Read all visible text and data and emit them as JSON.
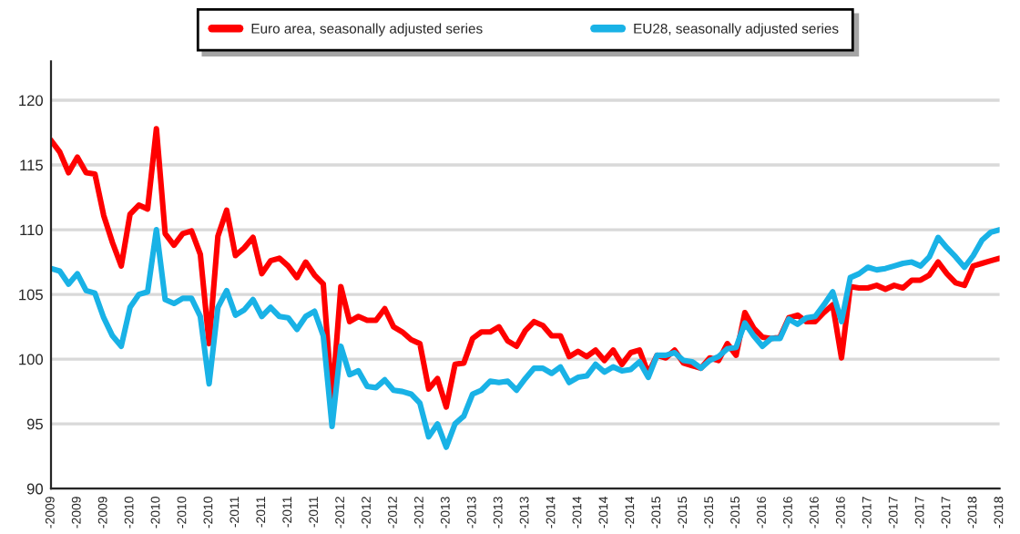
{
  "chart_data": {
    "type": "line",
    "categories": [
      "-2009",
      null,
      null,
      "-2009",
      null,
      null,
      "-2009",
      null,
      null,
      "-2010",
      null,
      null,
      "-2010",
      null,
      null,
      "-2010",
      null,
      null,
      "-2010",
      null,
      null,
      "-2011",
      null,
      null,
      "-2011",
      null,
      null,
      "-2011",
      null,
      null,
      "-2011",
      null,
      null,
      "-2012",
      null,
      null,
      "-2012",
      null,
      null,
      "-2012",
      null,
      null,
      "-2012",
      null,
      null,
      "-2013",
      null,
      null,
      "-2013",
      null,
      null,
      "-2013",
      null,
      null,
      "-2013",
      null,
      null,
      "-2014",
      null,
      null,
      "-2014",
      null,
      null,
      "-2014",
      null,
      null,
      "-2014",
      null,
      null,
      "-2015",
      null,
      null,
      "-2015",
      null,
      null,
      "-2015",
      null,
      null,
      "-2015",
      null,
      null,
      "-2016",
      null,
      null,
      "-2016",
      null,
      null,
      "-2016",
      null,
      null,
      "-2016",
      null,
      null,
      "-2017",
      null,
      null,
      "-2017",
      null,
      null,
      "-2017",
      null,
      null,
      "-2017",
      null,
      null,
      "-2018",
      null,
      null,
      "-2018"
    ],
    "series": [
      {
        "name": "Euro area, seasonally adjusted series",
        "color": "#ff0000",
        "values": [
          116.9,
          116.0,
          114.4,
          115.6,
          114.4,
          114.3,
          111.1,
          109.0,
          107.2,
          111.2,
          111.9,
          111.6,
          117.8,
          109.7,
          108.8,
          109.7,
          109.9,
          108.1,
          101.2,
          109.5,
          111.5,
          108.0,
          108.6,
          109.4,
          106.6,
          107.6,
          107.8,
          107.2,
          106.3,
          107.5,
          106.5,
          105.8,
          96.8,
          105.6,
          102.9,
          103.3,
          103.0,
          103.0,
          103.9,
          102.5,
          102.1,
          101.5,
          101.2,
          97.7,
          98.5,
          96.3,
          99.6,
          99.7,
          101.6,
          102.1,
          102.1,
          102.5,
          101.4,
          101.0,
          102.2,
          102.9,
          102.6,
          101.8,
          101.8,
          100.2,
          100.6,
          100.2,
          100.7,
          99.9,
          100.7,
          99.6,
          100.5,
          100.7,
          98.9,
          100.3,
          100.1,
          100.7,
          99.7,
          99.5,
          99.3,
          100.1,
          99.9,
          101.2,
          100.3,
          103.6,
          102.4,
          101.7,
          101.6,
          101.7,
          103.2,
          103.4,
          102.9,
          102.9,
          103.6,
          104.2,
          100.1,
          105.6,
          105.5,
          105.5,
          105.7,
          105.4,
          105.7,
          105.5,
          106.1,
          106.1,
          106.5,
          107.5,
          106.6,
          105.9,
          105.7,
          107.2,
          107.4,
          107.6,
          107.8
        ]
      },
      {
        "name": "EU28, seasonally adjusted series",
        "color": "#19b2e6",
        "values": [
          107.0,
          106.8,
          105.8,
          106.6,
          105.3,
          105.1,
          103.2,
          101.8,
          101.0,
          104.0,
          105.0,
          105.2,
          110.0,
          104.6,
          104.3,
          104.7,
          104.7,
          103.3,
          98.1,
          104.0,
          105.3,
          103.4,
          103.8,
          104.6,
          103.3,
          104.0,
          103.3,
          103.2,
          102.3,
          103.3,
          103.7,
          101.8,
          94.8,
          101.0,
          98.8,
          99.1,
          97.9,
          97.8,
          98.4,
          97.6,
          97.5,
          97.3,
          96.6,
          94.0,
          95.0,
          93.2,
          95.0,
          95.6,
          97.3,
          97.6,
          98.3,
          98.2,
          98.3,
          97.6,
          98.5,
          99.3,
          99.3,
          98.9,
          99.4,
          98.2,
          98.6,
          98.7,
          99.6,
          99.0,
          99.4,
          99.1,
          99.2,
          99.8,
          98.6,
          100.3,
          100.3,
          100.5,
          99.9,
          99.8,
          99.3,
          99.9,
          100.2,
          100.8,
          100.9,
          102.8,
          101.8,
          101.0,
          101.6,
          101.6,
          103.1,
          102.7,
          103.2,
          103.3,
          104.2,
          105.2,
          102.9,
          106.3,
          106.6,
          107.1,
          106.9,
          107.0,
          107.2,
          107.4,
          107.5,
          107.2,
          107.9,
          109.4,
          108.6,
          107.9,
          107.1,
          108.0,
          109.2,
          109.8,
          110.0
        ]
      }
    ],
    "ylim": [
      90,
      123
    ],
    "yticks": [
      90,
      95,
      100,
      105,
      110,
      115,
      120
    ],
    "grid": "y",
    "legend": "top",
    "marker": "none",
    "line_style": "solid"
  }
}
